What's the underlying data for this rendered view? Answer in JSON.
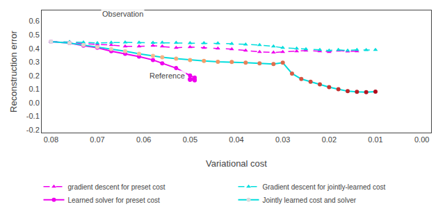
{
  "chart_data": {
    "type": "line",
    "x_label": "Variational cost",
    "y_label": "Reconstruction error",
    "xlim": [
      0.082,
      -0.002
    ],
    "ylim": [
      -0.22,
      0.68
    ],
    "xticks": [
      0.08,
      0.07,
      0.06,
      0.05,
      0.04,
      0.03,
      0.02,
      0.01,
      {
        "value": 0,
        "label": "0.00"
      }
    ],
    "yticks": [
      -0.2,
      -0.1,
      {
        "value": 0,
        "label": "0.0"
      },
      0.1,
      0.2,
      0.3,
      0.4,
      0.5,
      0.6
    ],
    "grid": false,
    "legend": "bottom",
    "annotations": [
      "Observation",
      "Reference"
    ],
    "series": [
      {
        "name": "gradient descent for preset cost",
        "color": "#ee00ee",
        "line_style": "dash",
        "marker": "triangle-up",
        "x": [
          0.08,
          0.076,
          0.073,
          0.07,
          0.067,
          0.064,
          0.061,
          0.058,
          0.056,
          0.053,
          0.05,
          0.047,
          0.044,
          0.041,
          0.038,
          0.035,
          0.032,
          0.03,
          0.027,
          0.025,
          0.022,
          0.02,
          0.018,
          0.016,
          0.014
        ],
        "values": [
          0.45,
          0.445,
          0.435,
          0.43,
          0.425,
          0.415,
          0.415,
          0.42,
          0.415,
          0.405,
          0.41,
          0.405,
          0.4,
          0.395,
          0.385,
          0.375,
          0.37,
          0.375,
          0.38,
          0.385,
          0.38,
          0.375,
          0.385,
          0.378,
          0.38
        ]
      },
      {
        "name": "Gradient descent for jointly-learned cost",
        "color": "#00dddd",
        "line_style": "dash",
        "marker": "triangle-up",
        "x": [
          0.08,
          0.076,
          0.073,
          0.07,
          0.067,
          0.064,
          0.061,
          0.058,
          0.056,
          0.053,
          0.05,
          0.047,
          0.044,
          0.041,
          0.038,
          0.035,
          0.032,
          0.03,
          0.027,
          0.025,
          0.022,
          0.02,
          0.018,
          0.016,
          0.014,
          0.012,
          0.01
        ],
        "values": [
          0.45,
          0.448,
          0.445,
          0.44,
          0.443,
          0.445,
          0.443,
          0.442,
          0.443,
          0.442,
          0.44,
          0.44,
          0.438,
          0.435,
          0.43,
          0.425,
          0.415,
          0.405,
          0.4,
          0.395,
          0.39,
          0.385,
          0.39,
          0.385,
          0.39,
          0.388,
          0.39
        ]
      },
      {
        "name": "Learned solver for preset cost",
        "color": "#ee00ee",
        "line_style": "solid",
        "marker": "circle",
        "x": [
          0.08,
          0.076,
          0.073,
          0.07,
          0.067,
          0.064,
          0.061,
          0.058,
          0.056,
          0.053,
          0.05,
          0.049,
          0.05,
          0.049,
          0.05,
          0.049,
          0.05
        ],
        "values": [
          0.45,
          0.44,
          0.42,
          0.405,
          0.38,
          0.36,
          0.34,
          0.315,
          0.29,
          0.255,
          0.2,
          0.185,
          0.175,
          0.168,
          0.172,
          0.165,
          0.168
        ]
      },
      {
        "name": "Jointly learned cost and solver",
        "color": "#00dddd",
        "line_style": "solid",
        "marker": "circle",
        "x": [
          0.08,
          0.076,
          0.073,
          0.07,
          0.067,
          0.064,
          0.061,
          0.058,
          0.056,
          0.053,
          0.05,
          0.047,
          0.044,
          0.041,
          0.038,
          0.035,
          0.032,
          0.03,
          0.028,
          0.026,
          0.024,
          0.022,
          0.02,
          0.018,
          0.016,
          0.014,
          0.012,
          0.01
        ],
        "values": [
          0.45,
          0.44,
          0.425,
          0.41,
          0.395,
          0.38,
          0.36,
          0.345,
          0.335,
          0.325,
          0.315,
          0.308,
          0.302,
          0.3,
          0.295,
          0.29,
          0.285,
          0.295,
          0.215,
          0.175,
          0.155,
          0.135,
          0.115,
          0.1,
          0.085,
          0.08,
          0.078,
          0.082
        ]
      }
    ]
  }
}
